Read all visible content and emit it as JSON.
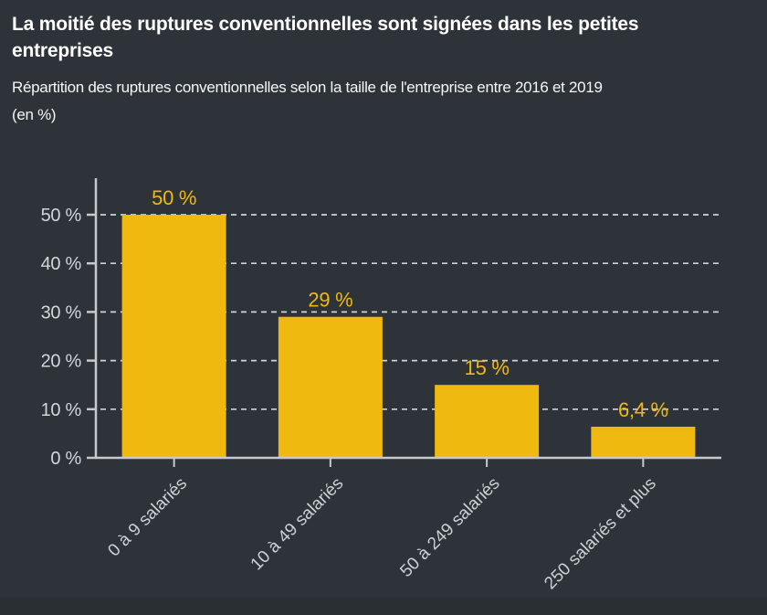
{
  "header": {
    "title": "La moitié des ruptures conventionnelles sont signées dans les petites entreprises",
    "subtitle": "Répartition des ruptures conventionnelles selon la taille de l'entreprise entre 2016 et 2019",
    "unit_note": "(en %)"
  },
  "colors": {
    "background": "#2d3338",
    "footer_band": "#2a2f33",
    "bar": "#f0b90f",
    "value_label": "#f0b90f",
    "axis": "#c7cacc",
    "gridline": "#cfd3d6",
    "tick_label": "#d2d6d9",
    "category_label": "#ccd0d3",
    "title_text": "#ffffff"
  },
  "chart_data": {
    "type": "bar",
    "title": "La moitié des ruptures conventionnelles sont signées dans les petites entreprises",
    "subtitle": "Répartition des ruptures conventionnelles selon la taille de l'entreprise entre 2016 et 2019 (en %)",
    "categories": [
      "0 à 9 salariés",
      "10 à 49 salariés",
      "50 à 249 salariés",
      "250 salariés et plus"
    ],
    "values": [
      50,
      29,
      15,
      6.4
    ],
    "value_labels": [
      "50 %",
      "29 %",
      "15 %",
      "6,4 %"
    ],
    "y_ticks": [
      0,
      10,
      20,
      30,
      40,
      50
    ],
    "y_tick_labels": [
      "0 %",
      "10 %",
      "20 %",
      "30 %",
      "40 %",
      "50 %"
    ],
    "ylim": [
      0,
      50
    ],
    "xlabel": "",
    "ylabel": "",
    "grid": "horizontal-dashed",
    "legend_position": "none",
    "bar_color": "#f0b90f"
  }
}
